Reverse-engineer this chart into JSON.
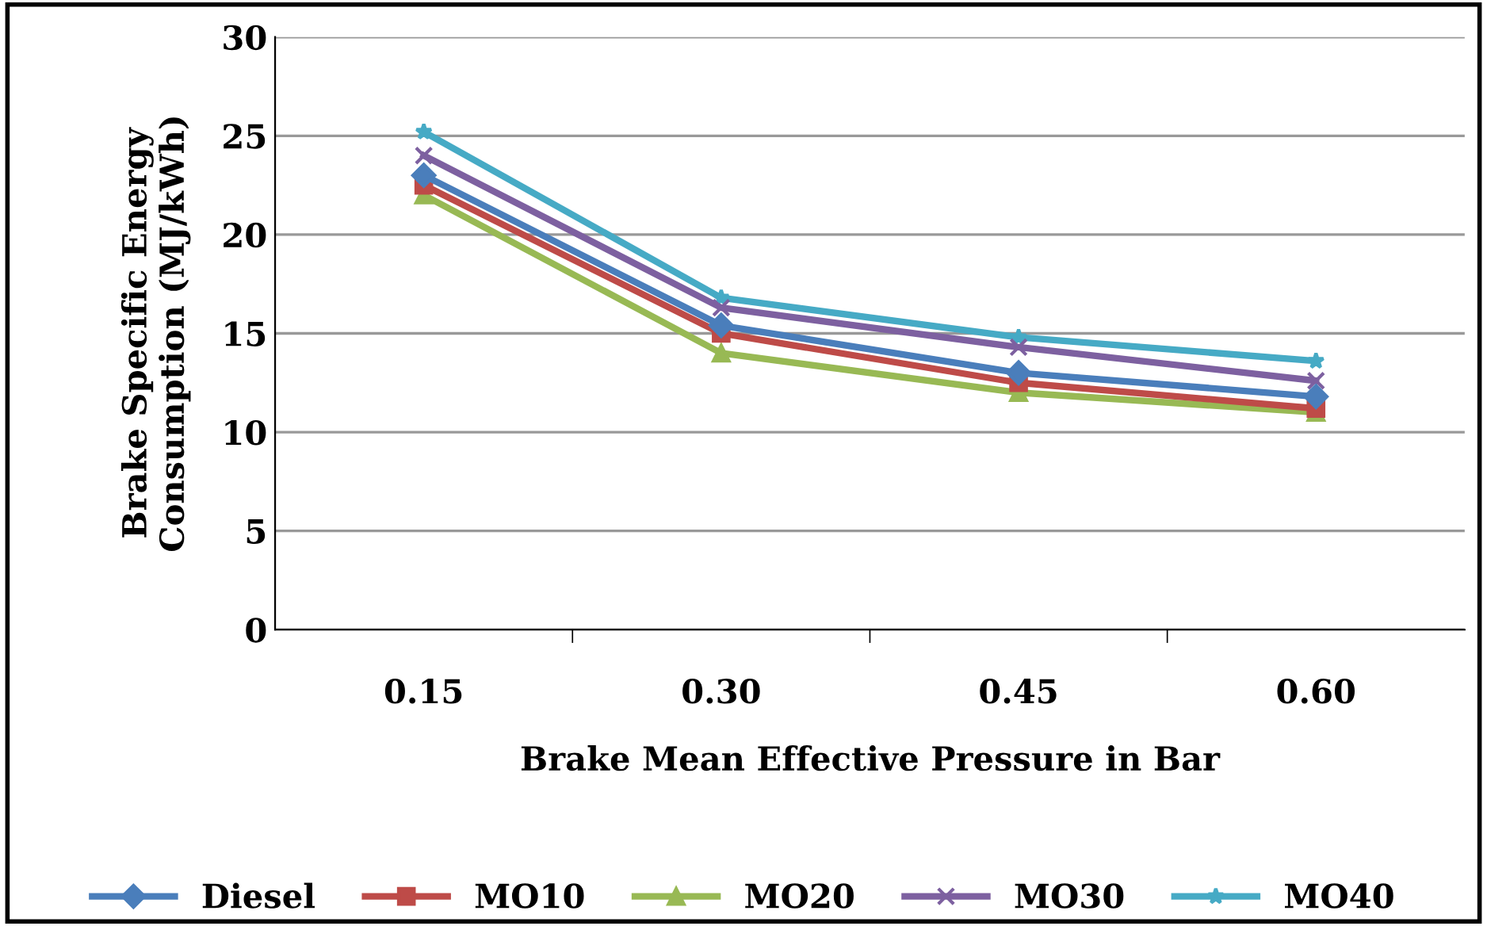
{
  "chart_data": {
    "type": "line",
    "xlabel": "Brake Mean Effective Pressure in Bar",
    "ylabel": "Brake Specific Energy\nConsumption (MJ/kWh)",
    "categories": [
      "0.15",
      "0.30",
      "0.45",
      "0.60"
    ],
    "series": [
      {
        "name": "Diesel",
        "color": "#4a7ebb",
        "marker": "diamond",
        "values": [
          23.0,
          15.4,
          13.0,
          11.8
        ]
      },
      {
        "name": "MO10",
        "color": "#be4b48",
        "marker": "square",
        "values": [
          22.5,
          15.0,
          12.5,
          11.2
        ]
      },
      {
        "name": "MO20",
        "color": "#98b954",
        "marker": "triangle",
        "values": [
          22.0,
          14.0,
          12.0,
          11.0
        ]
      },
      {
        "name": "MO30",
        "color": "#7d60a0",
        "marker": "cross",
        "values": [
          24.0,
          16.3,
          14.3,
          12.6
        ]
      },
      {
        "name": "MO40",
        "color": "#46aac5",
        "marker": "star",
        "values": [
          25.2,
          16.8,
          14.8,
          13.6
        ]
      }
    ],
    "ylim": [
      0,
      30
    ],
    "yticks": [
      0,
      5,
      10,
      15,
      20,
      25,
      30
    ],
    "grid": "y",
    "legend": "bottom",
    "line_style": "solid"
  }
}
